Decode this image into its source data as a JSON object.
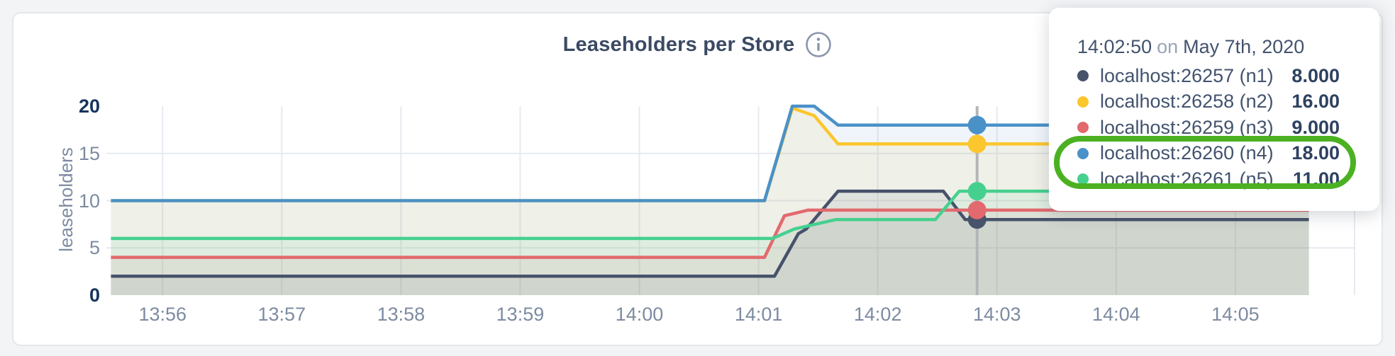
{
  "header": {
    "title": "Leaseholders per Store"
  },
  "tooltip": {
    "time": "14:02:50",
    "connector": "on",
    "date": "May 7th, 2020",
    "rows": [
      {
        "name": "localhost:26257 (n1)",
        "value": "8.000",
        "color": "#47526b",
        "annotated": false
      },
      {
        "name": "localhost:26258 (n2)",
        "value": "16.00",
        "color": "#fcc62d",
        "annotated": false
      },
      {
        "name": "localhost:26259 (n3)",
        "value": "9.000",
        "color": "#e2696d",
        "annotated": false
      },
      {
        "name": "localhost:26260 (n4)",
        "value": "18.00",
        "color": "#4a91c8",
        "annotated": true
      },
      {
        "name": "localhost:26261 (n5)",
        "value": "11.00",
        "color": "#46d08f",
        "annotated": true
      }
    ],
    "annotation_color": "#4cb122"
  },
  "chart_data": {
    "type": "line",
    "title": "Leaseholders per Store",
    "ylabel": "leaseholders",
    "xlabel": "",
    "x_ticks": [
      "13:56",
      "13:57",
      "13:58",
      "13:59",
      "14:00",
      "14:01",
      "14:02",
      "14:03",
      "14:04",
      "14:05"
    ],
    "y_ticks": [
      0,
      5,
      10,
      15,
      20
    ],
    "y_domain": [
      0,
      20
    ],
    "x_domain": [
      "13:55:31",
      "14:06:00"
    ],
    "grid": true,
    "legend_position": "tooltip-overlay",
    "highlight_time": "14:02:50",
    "series": [
      {
        "name": "localhost:26257 (n1)",
        "color": "#47526b",
        "points": [
          [
            "13:55:34",
            2
          ],
          [
            "14:01:08",
            2
          ],
          [
            "14:01:20",
            6.5
          ],
          [
            "14:01:24",
            7
          ],
          [
            "14:01:40",
            11
          ],
          [
            "14:02:33",
            11
          ],
          [
            "14:02:44",
            8
          ],
          [
            "14:05:37",
            8
          ]
        ]
      },
      {
        "name": "localhost:26258 (n2)",
        "color": "#fcc62d",
        "points": [
          [
            "13:55:34",
            10
          ],
          [
            "14:01:03",
            10
          ],
          [
            "14:01:17",
            19.8
          ],
          [
            "14:01:28",
            19
          ],
          [
            "14:01:40",
            16
          ],
          [
            "14:05:37",
            16
          ]
        ]
      },
      {
        "name": "localhost:26259 (n3)",
        "color": "#e2696d",
        "points": [
          [
            "13:55:34",
            4
          ],
          [
            "14:01:03",
            4
          ],
          [
            "14:01:13",
            8.4
          ],
          [
            "14:01:17",
            8.6
          ],
          [
            "14:01:25",
            9
          ],
          [
            "14:05:37",
            9
          ]
        ]
      },
      {
        "name": "localhost:26260 (n4)",
        "color": "#4a91c8",
        "points": [
          [
            "13:55:34",
            10
          ],
          [
            "14:01:03",
            10
          ],
          [
            "14:01:17",
            20
          ],
          [
            "14:01:28",
            20
          ],
          [
            "14:01:40",
            18
          ],
          [
            "14:05:37",
            18
          ]
        ]
      },
      {
        "name": "localhost:26261 (n5)",
        "color": "#46d08f",
        "points": [
          [
            "13:55:34",
            6
          ],
          [
            "14:01:07",
            6
          ],
          [
            "14:01:18",
            7
          ],
          [
            "14:01:39",
            8
          ],
          [
            "14:02:29",
            8
          ],
          [
            "14:02:41",
            11
          ],
          [
            "14:05:37",
            11
          ]
        ]
      }
    ],
    "highlight_values": {
      "n1": 8,
      "n2": 16,
      "n3": 9,
      "n4": 18,
      "n5": 11
    },
    "colors": {
      "grid": "#e7eaf0",
      "axis_text": "#7d8ba1",
      "axis_text_strong": "#16345c",
      "highlight_line": "#b4b6b9",
      "title": "#3b4a63",
      "info_icon": "#8a96ad",
      "fill_opacity": 0.09
    }
  }
}
